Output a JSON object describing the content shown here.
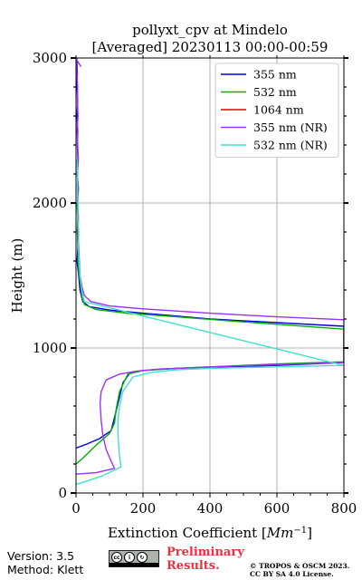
{
  "chart_data": {
    "type": "line",
    "title": "pollyxt_cpv at Mindelo",
    "subtitle": "[Averaged] 20230113 00:00-00:59",
    "xlabel": "Extinction Coefficient [Mm⁻¹]",
    "xlabel_text": "Extinction Coefficient [",
    "xlabel_unit": "Mm",
    "xlabel_exp": "−1",
    "xlabel_close": "]",
    "ylabel": "Height (m)",
    "xlim": [
      0,
      800
    ],
    "ylim": [
      0,
      3000
    ],
    "xticks": [
      0,
      200,
      400,
      600,
      800
    ],
    "yticks": [
      0,
      1000,
      2000,
      3000
    ],
    "grid": true,
    "legend_position": "top-right",
    "series": [
      {
        "name": "355 nm",
        "color": "#0000e0",
        "points": [
          [
            2,
            3000
          ],
          [
            4,
            2900
          ],
          [
            3,
            2800
          ],
          [
            5,
            2700
          ],
          [
            3,
            2600
          ],
          [
            5,
            2500
          ],
          [
            4,
            2400
          ],
          [
            6,
            2300
          ],
          [
            4,
            2200
          ],
          [
            7,
            2100
          ],
          [
            5,
            2000
          ],
          [
            6,
            1900
          ],
          [
            4,
            1800
          ],
          [
            6,
            1700
          ],
          [
            3,
            1600
          ],
          [
            8,
            1500
          ],
          [
            12,
            1400
          ],
          [
            20,
            1320
          ],
          [
            40,
            1285
          ],
          [
            100,
            1262
          ],
          [
            200,
            1240
          ],
          [
            400,
            1200
          ],
          [
            600,
            1175
          ],
          [
            800,
            1150
          ],
          [
            800,
            900
          ],
          [
            600,
            880
          ],
          [
            400,
            868
          ],
          [
            300,
            860
          ],
          [
            200,
            845
          ],
          [
            160,
            825
          ],
          [
            140,
            760
          ],
          [
            130,
            660
          ],
          [
            115,
            520
          ],
          [
            105,
            430
          ],
          [
            70,
            375
          ],
          [
            30,
            335
          ],
          [
            0,
            310
          ]
        ]
      },
      {
        "name": "532 nm",
        "color": "#00b000",
        "points": [
          [
            3,
            2000
          ],
          [
            5,
            1900
          ],
          [
            4,
            1800
          ],
          [
            7,
            1700
          ],
          [
            6,
            1600
          ],
          [
            10,
            1500
          ],
          [
            15,
            1420
          ],
          [
            18,
            1350
          ],
          [
            25,
            1300
          ],
          [
            60,
            1265
          ],
          [
            150,
            1240
          ],
          [
            300,
            1215
          ],
          [
            500,
            1180
          ],
          [
            800,
            1130
          ],
          [
            800,
            905
          ],
          [
            600,
            890
          ],
          [
            400,
            870
          ],
          [
            300,
            860
          ],
          [
            200,
            845
          ],
          [
            155,
            820
          ],
          [
            130,
            700
          ],
          [
            120,
            580
          ],
          [
            115,
            480
          ],
          [
            100,
            410
          ],
          [
            60,
            330
          ],
          [
            20,
            240
          ],
          [
            0,
            200
          ]
        ]
      },
      {
        "name": "1064 nm",
        "color": "#e00000",
        "points": []
      },
      {
        "name": "355 nm (NR)",
        "color": "#9b30ff",
        "points": [
          [
            15,
            2940
          ],
          [
            4,
            2980
          ],
          [
            0,
            3000
          ],
          [
            3,
            2900
          ],
          [
            5,
            2800
          ],
          [
            4,
            2700
          ],
          [
            6,
            2600
          ],
          [
            3,
            2500
          ],
          [
            5,
            2400
          ],
          [
            7,
            2300
          ],
          [
            4,
            2200
          ],
          [
            6,
            2100
          ],
          [
            5,
            2000
          ],
          [
            7,
            1900
          ],
          [
            6,
            1800
          ],
          [
            8,
            1700
          ],
          [
            10,
            1600
          ],
          [
            12,
            1500
          ],
          [
            18,
            1420
          ],
          [
            25,
            1360
          ],
          [
            45,
            1320
          ],
          [
            100,
            1290
          ],
          [
            200,
            1270
          ],
          [
            400,
            1240
          ],
          [
            600,
            1215
          ],
          [
            800,
            1195
          ],
          [
            800,
            900
          ],
          [
            600,
            885
          ],
          [
            400,
            870
          ],
          [
            250,
            855
          ],
          [
            180,
            840
          ],
          [
            130,
            820
          ],
          [
            90,
            780
          ],
          [
            75,
            700
          ],
          [
            72,
            620
          ],
          [
            75,
            500
          ],
          [
            80,
            400
          ],
          [
            90,
            300
          ],
          [
            105,
            220
          ],
          [
            115,
            170
          ],
          [
            60,
            140
          ],
          [
            0,
            130
          ]
        ]
      },
      {
        "name": "532 nm (NR)",
        "color": "#40e0d0",
        "points": [
          [
            3,
            2300
          ],
          [
            5,
            2200
          ],
          [
            4,
            2100
          ],
          [
            6,
            2000
          ],
          [
            5,
            1900
          ],
          [
            8,
            1800
          ],
          [
            7,
            1700
          ],
          [
            9,
            1600
          ],
          [
            12,
            1500
          ],
          [
            16,
            1420
          ],
          [
            20,
            1360
          ],
          [
            25,
            1320
          ],
          [
            800,
            880
          ],
          [
            600,
            870
          ],
          [
            400,
            860
          ],
          [
            300,
            850
          ],
          [
            220,
            830
          ],
          [
            170,
            800
          ],
          [
            140,
            700
          ],
          [
            130,
            600
          ],
          [
            125,
            500
          ],
          [
            125,
            400
          ],
          [
            130,
            250
          ],
          [
            135,
            180
          ],
          [
            80,
            120
          ],
          [
            30,
            80
          ],
          [
            0,
            60
          ]
        ]
      }
    ]
  },
  "footer": {
    "version": "Version: 3.5",
    "method": "Method: Klett",
    "preliminary": "Preliminary",
    "results": "Results.",
    "copyright_line1": "© TROPOS & OSCM 2023.",
    "copyright_line2": "CC BY SA 4.0 License."
  },
  "license_badge": {
    "icons": [
      "cc",
      "by",
      "sa"
    ]
  }
}
